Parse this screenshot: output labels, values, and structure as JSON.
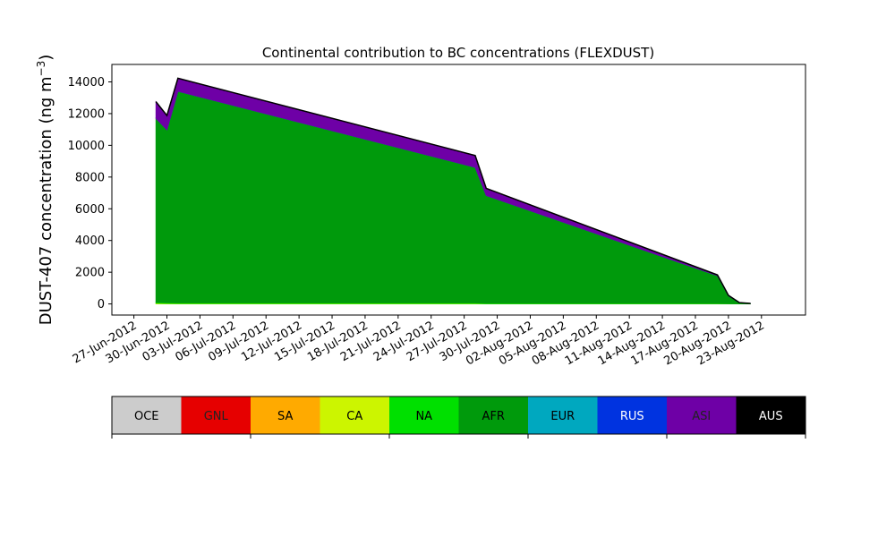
{
  "chart_data": {
    "type": "area",
    "title": "Continental contribution to BC concentrations (FLEXDUST)",
    "ylabel_main": "DUST-407 concentration (ng m",
    "ylabel_sup": "−3",
    "ylabel_end": ")",
    "xlabel": "",
    "x_start": "2012-06-25",
    "x_end": "2012-08-27",
    "ylim": [
      -700,
      15100
    ],
    "yticks": [
      0,
      2000,
      4000,
      6000,
      8000,
      10000,
      12000,
      14000
    ],
    "xtick_labels": [
      "27-Jun-2012",
      "30-Jun-2012",
      "03-Jul-2012",
      "06-Jul-2012",
      "09-Jul-2012",
      "12-Jul-2012",
      "15-Jul-2012",
      "18-Jul-2012",
      "21-Jul-2012",
      "24-Jul-2012",
      "27-Jul-2012",
      "30-Jul-2012",
      "02-Aug-2012",
      "05-Aug-2012",
      "08-Aug-2012",
      "11-Aug-2012",
      "14-Aug-2012",
      "17-Aug-2012",
      "20-Aug-2012",
      "23-Aug-2012"
    ],
    "xtick_dates": [
      "2012-06-27",
      "2012-06-30",
      "2012-07-03",
      "2012-07-06",
      "2012-07-09",
      "2012-07-12",
      "2012-07-15",
      "2012-07-18",
      "2012-07-21",
      "2012-07-24",
      "2012-07-27",
      "2012-07-30",
      "2012-08-02",
      "2012-08-05",
      "2012-08-08",
      "2012-08-11",
      "2012-08-14",
      "2012-08-17",
      "2012-08-20",
      "2012-08-23"
    ],
    "x": [
      "2012-06-29",
      "2012-06-30",
      "2012-07-01",
      "2012-07-28",
      "2012-07-29",
      "2012-08-19",
      "2012-08-20",
      "2012-08-21",
      "2012-08-22"
    ],
    "series": [
      {
        "name": "OCE",
        "color": "#cccccc",
        "values": [
          0,
          0,
          0,
          0,
          0,
          0,
          0,
          0,
          0
        ]
      },
      {
        "name": "GNL",
        "color": "#e60000",
        "values": [
          0,
          0,
          0,
          0,
          0,
          0,
          0,
          0,
          0
        ]
      },
      {
        "name": "SA",
        "color": "#ffaa00",
        "values": [
          0,
          0,
          0,
          0,
          0,
          0,
          0,
          0,
          0
        ]
      },
      {
        "name": "CA",
        "color": "#ccf500",
        "values": [
          40,
          30,
          20,
          20,
          10,
          10,
          5,
          5,
          5
        ]
      },
      {
        "name": "NA",
        "color": "#00e000",
        "values": [
          60,
          50,
          40,
          40,
          30,
          20,
          10,
          5,
          5
        ]
      },
      {
        "name": "AFR",
        "color": "#009a0c",
        "values": [
          11600,
          10900,
          13350,
          8550,
          6800,
          1750,
          500,
          60,
          20
        ]
      },
      {
        "name": "EUR",
        "color": "#00a8bf",
        "values": [
          0,
          0,
          0,
          0,
          0,
          0,
          0,
          0,
          0
        ]
      },
      {
        "name": "RUS",
        "color": "#0033e0",
        "values": [
          0,
          0,
          0,
          0,
          0,
          0,
          0,
          0,
          0
        ]
      },
      {
        "name": "ASI",
        "color": "#6e00a6",
        "values": [
          1050,
          900,
          820,
          750,
          450,
          50,
          30,
          10,
          5
        ]
      },
      {
        "name": "AUS",
        "color": "#000000",
        "values": [
          0,
          0,
          0,
          0,
          0,
          0,
          0,
          0,
          0
        ]
      }
    ]
  }
}
